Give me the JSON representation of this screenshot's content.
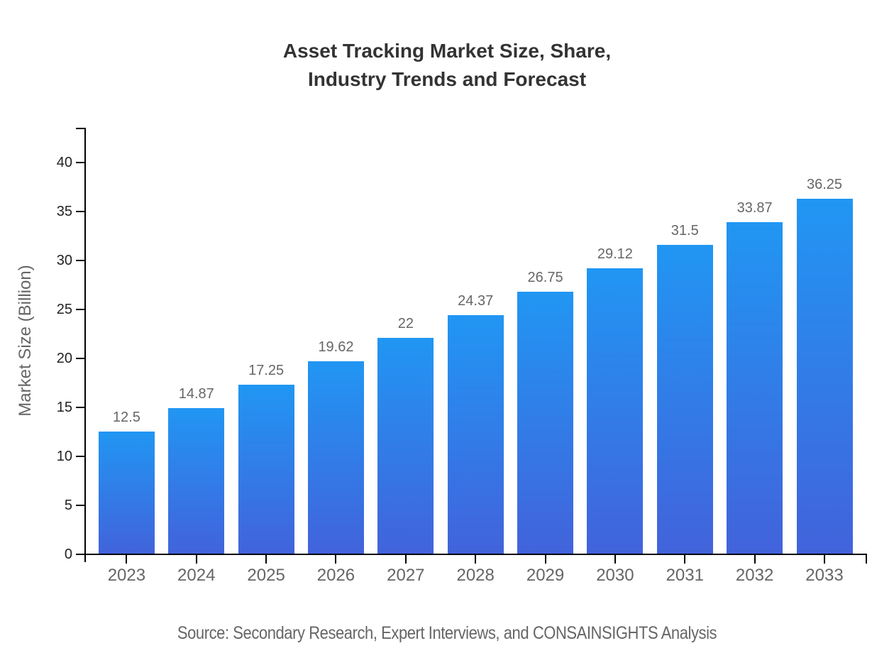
{
  "header": {
    "title_line1": "Asset Tracking Market Size, Share,",
    "title_line2": "Industry Trends and Forecast"
  },
  "footer": {
    "source": "Source: Secondary Research, Expert Interviews, and CONSAINSIGHTS Analysis"
  },
  "colors": {
    "bar_gradient_top": "#2196f3",
    "bar_gradient_bottom": "#4263db",
    "axis": "#000000",
    "title_text": "#333333",
    "label_text": "#666666",
    "ytick_text": "#222222"
  },
  "chart_data": {
    "type": "bar",
    "title": "Asset Tracking Market Size, Share, Industry Trends and Forecast",
    "categories": [
      "2023",
      "2024",
      "2025",
      "2026",
      "2027",
      "2028",
      "2029",
      "2030",
      "2031",
      "2032",
      "2033"
    ],
    "values": [
      12.5,
      14.87,
      17.25,
      19.62,
      22,
      24.37,
      26.75,
      29.12,
      31.5,
      33.87,
      36.25
    ],
    "value_labels": [
      "12.5",
      "14.87",
      "17.25",
      "19.62",
      "22",
      "24.37",
      "26.75",
      "29.12",
      "31.5",
      "33.87",
      "36.25"
    ],
    "xlabel": "",
    "ylabel": "Market Size (Billion)",
    "ylim": [
      0,
      43.5
    ],
    "yticks": [
      0,
      5,
      10,
      15,
      20,
      25,
      30,
      35,
      40
    ],
    "grid": false,
    "legend_position": "none",
    "bar_color_gradient": [
      "#2196f3",
      "#4263db"
    ],
    "source": "Source: Secondary Research, Expert Interviews, and CONSAINSIGHTS Analysis"
  }
}
